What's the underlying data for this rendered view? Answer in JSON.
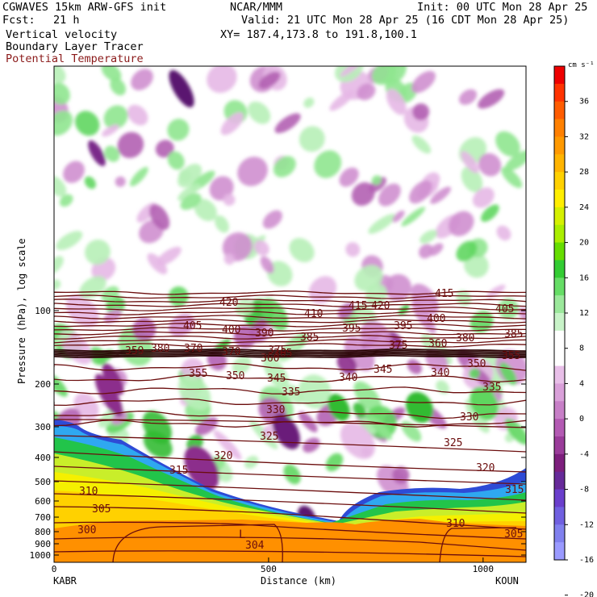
{
  "header": {
    "line1_left": "CGWAVES 15km ARW-GFS init",
    "line1_mid": "NCAR/MMM",
    "line1_right": "Init: 00 UTC Mon 28 Apr 25",
    "fcst_label": "Fcst:",
    "fcst_value": "21 h",
    "valid": "Valid: 21 UTC Mon 28 Apr 25 (16 CDT Mon 28 Apr 25)",
    "fields": [
      "Vertical velocity",
      "Boundary Layer Tracer",
      "Potential Temperature"
    ],
    "xy": "XY= 187.4,173.8 to 191.8,100.1"
  },
  "colorbar": {
    "unit": "cm s⁻¹",
    "labels": [
      "36",
      "32",
      "28",
      "24",
      "20",
      "16",
      "12",
      "8",
      "4",
      "0",
      "-4",
      "-8",
      "-12",
      "-16",
      "-20"
    ],
    "colors": [
      "#ee0000",
      "#ff3300",
      "#ff5c00",
      "#ff8000",
      "#ff9900",
      "#ffb400",
      "#ffd100",
      "#ffee00",
      "#d5f000",
      "#aaee00",
      "#66dd00",
      "#33cc33",
      "#66dd66",
      "#9be89b",
      "#c8f3c8",
      "#ffffff",
      "#ffffff",
      "#e8bfe8",
      "#d9a0d9",
      "#c77fc7",
      "#b35ab3",
      "#9a3c9a",
      "#7d1f7d",
      "#662a99",
      "#6a3fcc",
      "#7060e0",
      "#8080ee",
      "#9a9aff"
    ]
  },
  "chart_data": {
    "type": "heatmap",
    "xlabel": "Distance (km)",
    "ylabel": "Pressure (hPa), log scale",
    "xlim": [
      0,
      1100
    ],
    "x_ticks": [
      "0",
      "500",
      "1000"
    ],
    "y_scale": "log",
    "y_ticks": [
      "100",
      "200",
      "300",
      "400",
      "500",
      "600",
      "700",
      "800",
      "900",
      "1000"
    ],
    "x_endpoints": {
      "left": "KABR",
      "right": "KOUN"
    },
    "contour_field": "Potential Temperature",
    "contour_labels": [
      "420",
      "415",
      "415",
      "420",
      "410",
      "405",
      "405",
      "400",
      "400",
      "390",
      "385",
      "395",
      "395",
      "380",
      "385",
      "380",
      "375",
      "370",
      "370",
      "375",
      "360",
      "365",
      "360",
      "359",
      "355",
      "355",
      "350",
      "345",
      "345",
      "340",
      "340",
      "350",
      "335",
      "335",
      "330",
      "330",
      "325",
      "325",
      "320",
      "320",
      "315",
      "315",
      "310",
      "310",
      "305",
      "305",
      "300",
      "304"
    ],
    "annotation": "L"
  }
}
